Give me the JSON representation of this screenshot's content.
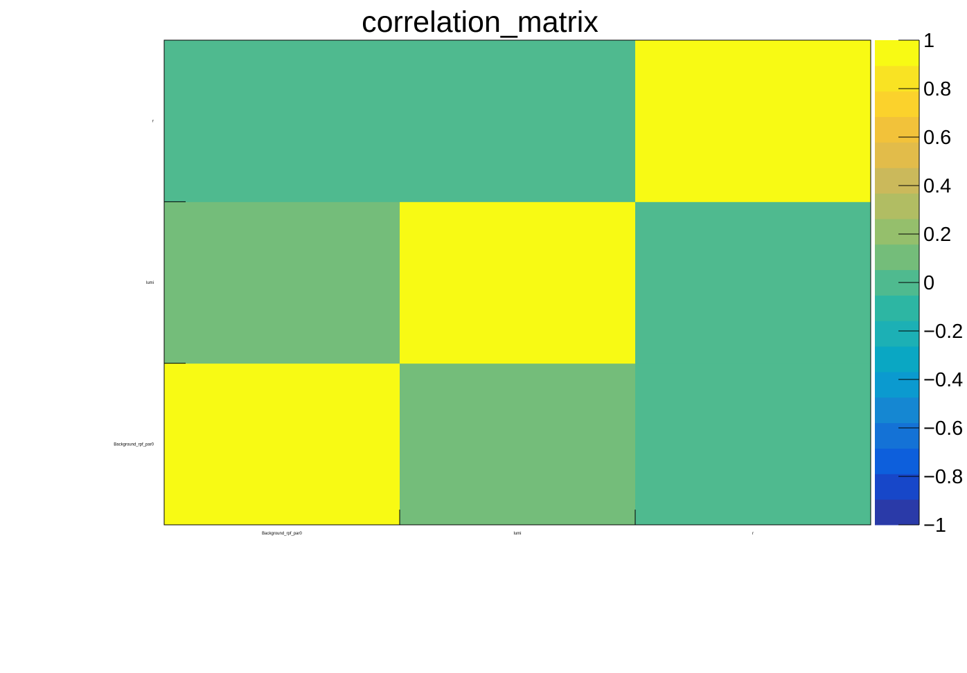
{
  "chart_data": {
    "type": "heatmap",
    "title": "correlation_matrix",
    "x_categories": [
      "Background_rpf_par0",
      "lumi",
      "r"
    ],
    "y_categories": [
      "Background_rpf_par0",
      "lumi",
      "r"
    ],
    "values": [
      [
        1.0,
        0.09,
        0.0
      ],
      [
        0.09,
        1.0,
        0.0
      ],
      [
        0.0,
        0.0,
        1.0
      ]
    ],
    "zlim": [
      -1,
      1
    ],
    "z_ticks": [
      1,
      0.8,
      0.6,
      0.4,
      0.2,
      0,
      -0.2,
      -0.4,
      -0.6,
      -0.8,
      -1
    ],
    "z_tick_labels": [
      "1",
      "0.8",
      "0.6",
      "0.4",
      "0.2",
      "0",
      "−0.2",
      "−0.4",
      "−0.6",
      "−0.8",
      "−1"
    ],
    "palette": [
      "#2a3aa8",
      "#1747c9",
      "#0d5fdc",
      "#1472d6",
      "#1587d2",
      "#0b9acf",
      "#0aa7c3",
      "#1cb0b5",
      "#2db6a3",
      "#4fba8f",
      "#74bd7a",
      "#95bf6c",
      "#b1bd63",
      "#cbb95b",
      "#e2bc4a",
      "#f2c23a",
      "#fbd22c",
      "#f9e323",
      "#f8fa14"
    ],
    "grid": false,
    "legend": "color-bar-right"
  }
}
